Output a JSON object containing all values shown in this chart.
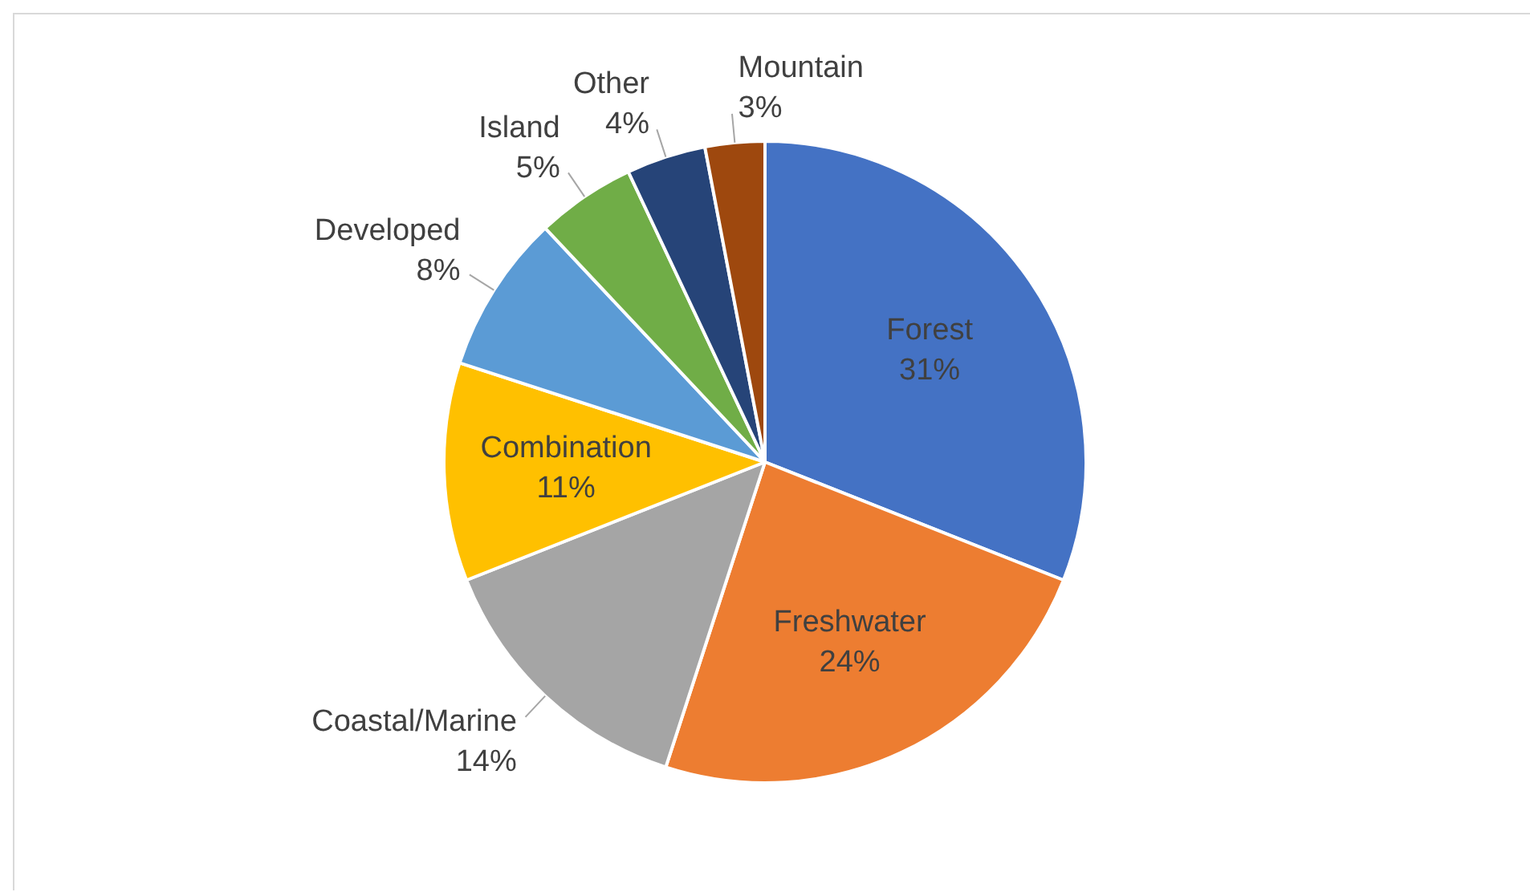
{
  "chart_data": {
    "type": "pie",
    "categories": [
      "Forest",
      "Freshwater",
      "Coastal/Marine",
      "Combination",
      "Developed",
      "Island",
      "Other",
      "Mountain"
    ],
    "values": [
      31,
      24,
      14,
      11,
      8,
      5,
      4,
      3
    ],
    "value_labels": [
      "31%",
      "24%",
      "14%",
      "11%",
      "8%",
      "5%",
      "4%",
      "3%"
    ],
    "colors": [
      "#4472c4",
      "#ed7d31",
      "#a5a5a5",
      "#ffc000",
      "#5b9bd5",
      "#70ad47",
      "#264478",
      "#9e480e"
    ],
    "legend": false
  }
}
